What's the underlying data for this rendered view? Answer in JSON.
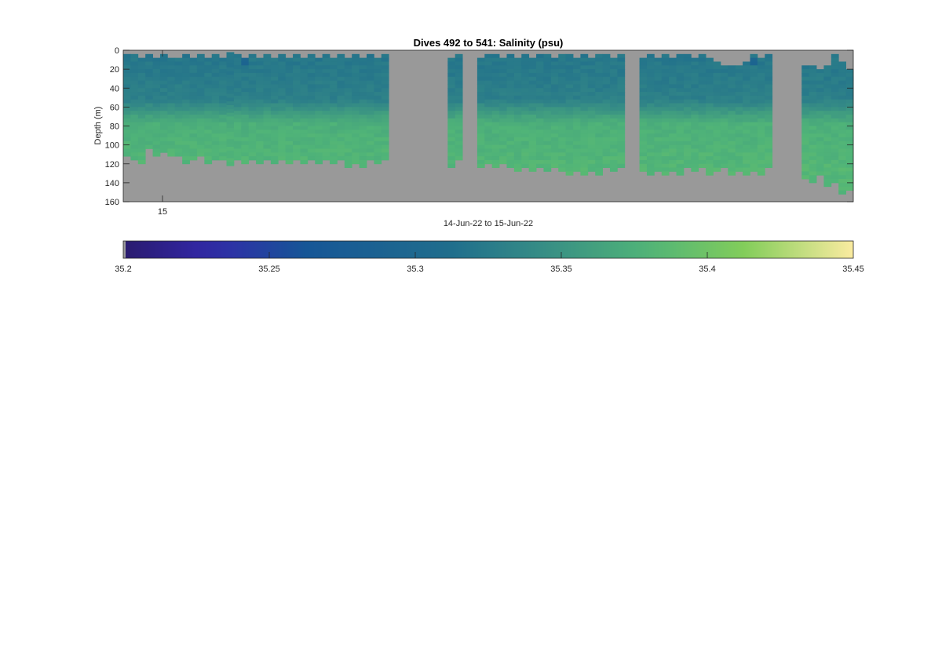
{
  "chart_data": {
    "type": "heatmap",
    "title": "Dives 492 to 541: Salinity (psu)",
    "xlabel": "14-Jun-22 to 15-Jun-22",
    "ylabel": "Depth (m)",
    "ylim": [
      0,
      160
    ],
    "y_ticks": [
      "0",
      "20",
      "40",
      "60",
      "80",
      "100",
      "120",
      "140",
      "160"
    ],
    "x_ticks": [
      "15"
    ],
    "colormap": "parula",
    "background_color": "#999999",
    "depth_bin_m": 4,
    "profiles": [
      {
        "top": 4,
        "bottom": 112,
        "fresh_core": 0.0
      },
      {
        "top": 4,
        "bottom": 116,
        "fresh_core": 0.0
      },
      {
        "top": 8,
        "bottom": 118,
        "fresh_core": 0.0
      },
      {
        "top": 4,
        "bottom": 104,
        "fresh_core": 0.0
      },
      {
        "top": 8,
        "bottom": 112,
        "fresh_core": 0.0
      },
      {
        "top": 4,
        "bottom": 108,
        "fresh_core": 0.0
      },
      {
        "top": 8,
        "bottom": 112,
        "fresh_core": 0.0
      },
      {
        "top": 8,
        "bottom": 112,
        "fresh_core": 0.0
      },
      {
        "top": 4,
        "bottom": 120,
        "fresh_core": 0.0
      },
      {
        "top": 8,
        "bottom": 116,
        "fresh_core": 0.0
      },
      {
        "top": 4,
        "bottom": 112,
        "fresh_core": 0.0
      },
      {
        "top": 8,
        "bottom": 120,
        "fresh_core": 0.0
      },
      {
        "top": 4,
        "bottom": 116,
        "fresh_core": 0.0
      },
      {
        "top": 8,
        "bottom": 116,
        "fresh_core": 0.0
      },
      {
        "top": 2,
        "bottom": 120,
        "fresh_core": 0.0
      },
      {
        "top": 4,
        "bottom": 116,
        "fresh_core": 0.0
      },
      {
        "top": 8,
        "bottom": 120,
        "fresh_core": 0.9
      },
      {
        "top": 4,
        "bottom": 116,
        "fresh_core": 0.0
      },
      {
        "top": 8,
        "bottom": 120,
        "fresh_core": 0.0
      },
      {
        "top": 4,
        "bottom": 116,
        "fresh_core": 0.0
      },
      {
        "top": 8,
        "bottom": 120,
        "fresh_core": 0.0
      },
      {
        "top": 4,
        "bottom": 116,
        "fresh_core": 0.0
      },
      {
        "top": 8,
        "bottom": 120,
        "fresh_core": 0.0
      },
      {
        "top": 4,
        "bottom": 116,
        "fresh_core": 0.0
      },
      {
        "top": 8,
        "bottom": 120,
        "fresh_core": 0.0
      },
      {
        "top": 4,
        "bottom": 116,
        "fresh_core": 0.0
      },
      {
        "top": 8,
        "bottom": 120,
        "fresh_core": 0.0
      },
      {
        "top": 4,
        "bottom": 116,
        "fresh_core": 0.0
      },
      {
        "top": 8,
        "bottom": 120,
        "fresh_core": 0.0
      },
      {
        "top": 4,
        "bottom": 116,
        "fresh_core": 0.0
      },
      {
        "top": 8,
        "bottom": 124,
        "fresh_core": 0.0
      },
      {
        "top": 4,
        "bottom": 120,
        "fresh_core": 0.0
      },
      {
        "top": 8,
        "bottom": 124,
        "fresh_core": 0.0
      },
      {
        "top": 4,
        "bottom": 116,
        "fresh_core": 0.0
      },
      {
        "top": 8,
        "bottom": 120,
        "fresh_core": 0.0
      },
      {
        "top": 4,
        "bottom": 116,
        "fresh_core": 0.0
      },
      {
        "gap": true
      },
      {
        "gap": true
      },
      {
        "gap": true
      },
      {
        "gap": true
      },
      {
        "gap": true
      },
      {
        "gap": true
      },
      {
        "gap": true
      },
      {
        "gap": true
      },
      {
        "top": 8,
        "bottom": 124,
        "fresh_core": 0.0
      },
      {
        "top": 4,
        "bottom": 116,
        "fresh_core": 0.0
      },
      {
        "gap": true
      },
      {
        "gap": true
      },
      {
        "top": 8,
        "bottom": 124,
        "fresh_core": 0.0
      },
      {
        "top": 4,
        "bottom": 120,
        "fresh_core": 0.0
      },
      {
        "top": 4,
        "bottom": 124,
        "fresh_core": 0.0
      },
      {
        "top": 8,
        "bottom": 120,
        "fresh_core": 0.0
      },
      {
        "top": 4,
        "bottom": 124,
        "fresh_core": 0.0
      },
      {
        "top": 8,
        "bottom": 128,
        "fresh_core": 0.0
      },
      {
        "top": 4,
        "bottom": 124,
        "fresh_core": 0.0
      },
      {
        "top": 8,
        "bottom": 128,
        "fresh_core": 0.0
      },
      {
        "top": 4,
        "bottom": 124,
        "fresh_core": 0.0
      },
      {
        "top": 4,
        "bottom": 128,
        "fresh_core": 0.0
      },
      {
        "top": 8,
        "bottom": 124,
        "fresh_core": 0.0
      },
      {
        "top": 4,
        "bottom": 128,
        "fresh_core": 0.0
      },
      {
        "top": 4,
        "bottom": 132,
        "fresh_core": 0.0
      },
      {
        "top": 8,
        "bottom": 128,
        "fresh_core": 0.0
      },
      {
        "top": 4,
        "bottom": 132,
        "fresh_core": 0.0
      },
      {
        "top": 8,
        "bottom": 128,
        "fresh_core": 0.0
      },
      {
        "top": 4,
        "bottom": 132,
        "fresh_core": 0.0
      },
      {
        "top": 4,
        "bottom": 124,
        "fresh_core": 0.0
      },
      {
        "top": 8,
        "bottom": 128,
        "fresh_core": 0.0
      },
      {
        "top": 4,
        "bottom": 124,
        "fresh_core": 0.0
      },
      {
        "gap": true
      },
      {
        "gap": true
      },
      {
        "top": 8,
        "bottom": 128,
        "fresh_core": 0.0
      },
      {
        "top": 4,
        "bottom": 132,
        "fresh_core": 0.0
      },
      {
        "top": 8,
        "bottom": 128,
        "fresh_core": 0.0
      },
      {
        "top": 4,
        "bottom": 132,
        "fresh_core": 0.0
      },
      {
        "top": 8,
        "bottom": 128,
        "fresh_core": 0.0
      },
      {
        "top": 4,
        "bottom": 132,
        "fresh_core": 0.0
      },
      {
        "top": 4,
        "bottom": 124,
        "fresh_core": 0.0
      },
      {
        "top": 8,
        "bottom": 128,
        "fresh_core": 0.0
      },
      {
        "top": 4,
        "bottom": 124,
        "fresh_core": 0.0
      },
      {
        "top": 8,
        "bottom": 132,
        "fresh_core": 0.0
      },
      {
        "top": 12,
        "bottom": 128,
        "fresh_core": 0.0
      },
      {
        "top": 16,
        "bottom": 124,
        "fresh_core": 0.0
      },
      {
        "top": 16,
        "bottom": 132,
        "fresh_core": 0.0
      },
      {
        "top": 16,
        "bottom": 128,
        "fresh_core": 0.0
      },
      {
        "top": 12,
        "bottom": 132,
        "fresh_core": 0.0
      },
      {
        "top": 4,
        "bottom": 128,
        "fresh_core": 0.6
      },
      {
        "top": 8,
        "bottom": 132,
        "fresh_core": 0.0
      },
      {
        "top": 4,
        "bottom": 124,
        "fresh_core": 0.0
      },
      {
        "gap": true
      },
      {
        "gap": true
      },
      {
        "gap": true
      },
      {
        "gap": true
      },
      {
        "top": 16,
        "bottom": 136,
        "fresh_core": 0.0
      },
      {
        "top": 16,
        "bottom": 140,
        "fresh_core": 0.0
      },
      {
        "top": 20,
        "bottom": 132,
        "fresh_core": 0.0
      },
      {
        "top": 16,
        "bottom": 144,
        "fresh_core": 0.0
      },
      {
        "top": 4,
        "bottom": 140,
        "fresh_core": 0.0
      },
      {
        "top": 12,
        "bottom": 152,
        "fresh_core": 0.0
      },
      {
        "top": 20,
        "bottom": 148,
        "fresh_core": 0.0
      }
    ],
    "colorbar": {
      "clim": [
        35.2,
        35.45
      ],
      "ticks": [
        "35.2",
        "35.25",
        "35.3",
        "35.35",
        "35.4",
        "35.45"
      ]
    }
  }
}
